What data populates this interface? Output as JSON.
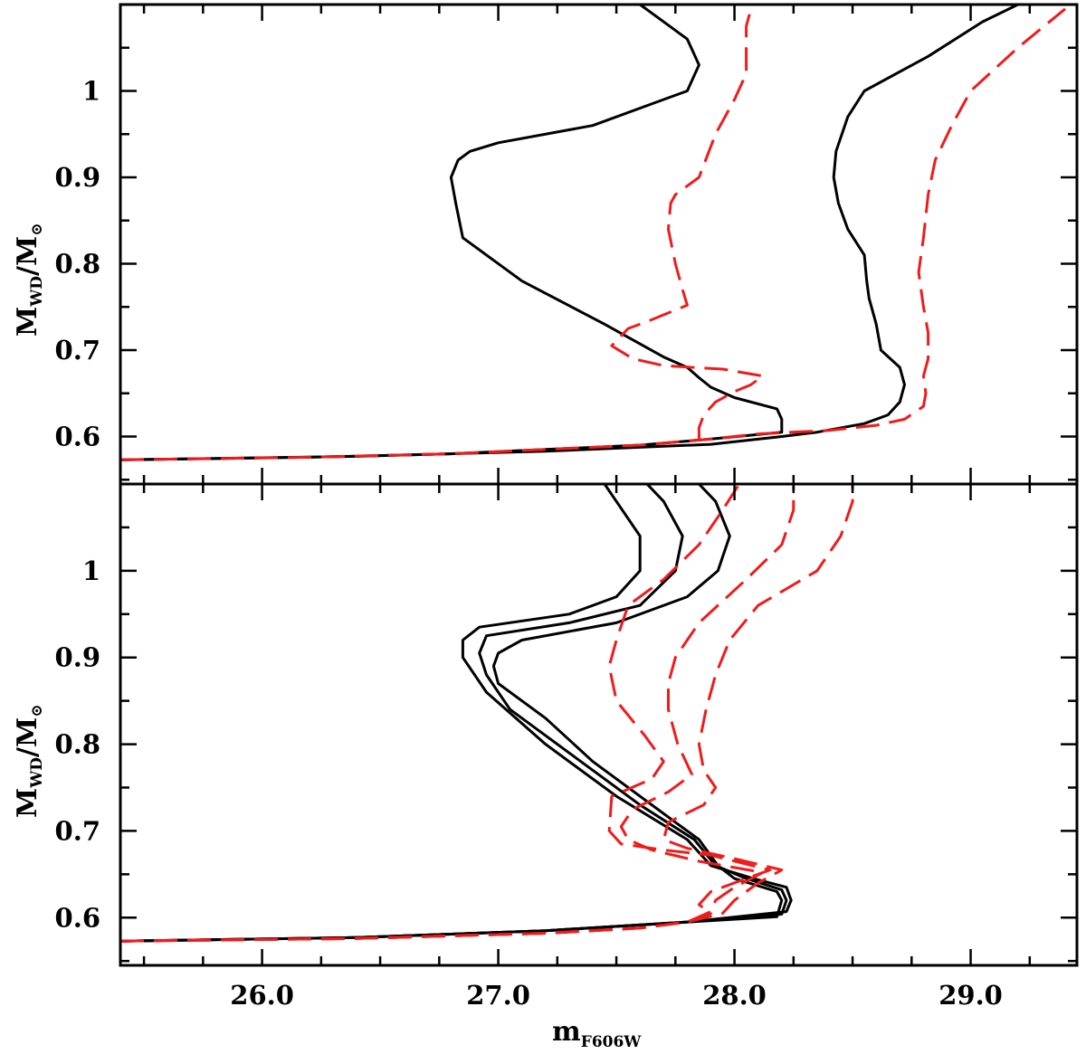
{
  "chart_data": [
    {
      "panel": "top",
      "type": "line",
      "xlabel": {
        "main": "",
        "sub": ""
      },
      "ylabel": {
        "main": "M",
        "sub": "WD",
        "slash": "/M",
        "sym": "⊙"
      },
      "xlim": [
        25.4,
        29.45
      ],
      "ylim": [
        0.545,
        1.1
      ],
      "yticks": [
        0.6,
        0.7,
        0.8,
        0.9,
        1.0
      ],
      "ytick_labels": [
        "0.6",
        "0.7",
        "0.8",
        "0.9",
        "1"
      ],
      "xticks": [
        26.0,
        27.0,
        28.0,
        29.0
      ],
      "xtick_labels": [],
      "colors": {
        "solid": "#000000",
        "dashed": "#ee1c1c"
      },
      "series": [
        {
          "style": "solid",
          "points": [
            [
              25.4,
              0.573
            ],
            [
              26.2,
              0.576
            ],
            [
              26.8,
              0.58
            ],
            [
              27.2,
              0.585
            ],
            [
              27.6,
              0.59
            ],
            [
              27.9,
              0.597
            ],
            [
              28.2,
              0.605
            ],
            [
              28.2,
              0.62
            ],
            [
              28.18,
              0.632
            ],
            [
              28.0,
              0.645
            ],
            [
              27.9,
              0.657
            ],
            [
              27.85,
              0.668
            ],
            [
              27.8,
              0.68
            ],
            [
              27.7,
              0.692
            ],
            [
              27.45,
              0.73
            ],
            [
              27.1,
              0.78
            ],
            [
              26.85,
              0.83
            ],
            [
              26.82,
              0.87
            ],
            [
              26.8,
              0.9
            ],
            [
              26.83,
              0.92
            ],
            [
              26.88,
              0.93
            ],
            [
              27.0,
              0.94
            ],
            [
              27.4,
              0.96
            ],
            [
              27.7,
              0.99
            ],
            [
              27.8,
              1.0
            ],
            [
              27.85,
              1.03
            ],
            [
              27.8,
              1.06
            ],
            [
              27.7,
              1.08
            ],
            [
              27.6,
              1.1
            ]
          ]
        },
        {
          "style": "solid",
          "points": [
            [
              25.4,
              0.573
            ],
            [
              26.4,
              0.577
            ],
            [
              27.2,
              0.583
            ],
            [
              27.9,
              0.591
            ],
            [
              28.2,
              0.6
            ],
            [
              28.35,
              0.605
            ],
            [
              28.55,
              0.615
            ],
            [
              28.65,
              0.625
            ],
            [
              28.7,
              0.64
            ],
            [
              28.72,
              0.66
            ],
            [
              28.7,
              0.68
            ],
            [
              28.62,
              0.7
            ],
            [
              28.6,
              0.73
            ],
            [
              28.57,
              0.76
            ],
            [
              28.56,
              0.78
            ],
            [
              28.55,
              0.81
            ],
            [
              28.48,
              0.84
            ],
            [
              28.44,
              0.87
            ],
            [
              28.42,
              0.9
            ],
            [
              28.43,
              0.93
            ],
            [
              28.48,
              0.97
            ],
            [
              28.55,
              1.0
            ],
            [
              28.82,
              1.04
            ],
            [
              29.05,
              1.08
            ],
            [
              29.2,
              1.1
            ]
          ]
        },
        {
          "style": "dashed",
          "points": [
            [
              25.4,
              0.573
            ],
            [
              26.2,
              0.576
            ],
            [
              26.8,
              0.58
            ],
            [
              27.2,
              0.585
            ],
            [
              27.6,
              0.59
            ],
            [
              27.9,
              0.597
            ],
            [
              28.1,
              0.603
            ],
            [
              28.4,
              0.607
            ],
            [
              28.6,
              0.613
            ],
            [
              28.72,
              0.62
            ],
            [
              28.8,
              0.635
            ],
            [
              28.81,
              0.65
            ],
            [
              28.8,
              0.67
            ],
            [
              28.82,
              0.69
            ],
            [
              28.82,
              0.72
            ],
            [
              28.8,
              0.75
            ],
            [
              28.78,
              0.79
            ],
            [
              28.8,
              0.83
            ],
            [
              28.82,
              0.88
            ],
            [
              28.85,
              0.92
            ],
            [
              28.92,
              0.96
            ],
            [
              29.0,
              1.0
            ],
            [
              29.2,
              1.05
            ],
            [
              29.4,
              1.095
            ]
          ]
        },
        {
          "style": "dashed",
          "points": [
            [
              27.85,
              0.595
            ],
            [
              27.85,
              0.61
            ],
            [
              27.87,
              0.625
            ],
            [
              27.92,
              0.64
            ],
            [
              28.0,
              0.652
            ],
            [
              28.07,
              0.66
            ],
            [
              28.12,
              0.67
            ],
            [
              27.95,
              0.678
            ],
            [
              27.7,
              0.682
            ],
            [
              27.57,
              0.69
            ],
            [
              27.48,
              0.705
            ],
            [
              27.55,
              0.725
            ],
            [
              27.63,
              0.733
            ],
            [
              27.8,
              0.752
            ],
            [
              27.78,
              0.77
            ],
            [
              27.75,
              0.8
            ],
            [
              27.72,
              0.84
            ],
            [
              27.73,
              0.87
            ],
            [
              27.75,
              0.88
            ],
            [
              27.85,
              0.9
            ],
            [
              27.92,
              0.95
            ],
            [
              28.0,
              0.99
            ],
            [
              28.05,
              1.02
            ],
            [
              28.05,
              1.05
            ],
            [
              28.05,
              1.075
            ],
            [
              28.07,
              1.095
            ]
          ]
        }
      ]
    },
    {
      "panel": "bottom",
      "type": "line",
      "xlabel": {
        "main": "m",
        "sub": "F606W"
      },
      "ylabel": {
        "main": "M",
        "sub": "WD",
        "slash": "/M",
        "sym": "⊙"
      },
      "xlim": [
        25.4,
        29.45
      ],
      "ylim": [
        0.545,
        1.1
      ],
      "yticks": [
        0.6,
        0.7,
        0.8,
        0.9,
        1.0
      ],
      "ytick_labels": [
        "0.6",
        "0.7",
        "0.8",
        "0.9",
        "1"
      ],
      "xticks": [
        26.0,
        27.0,
        28.0,
        29.0
      ],
      "xtick_labels": [
        "26.0",
        "27.0",
        "28.0",
        "29.0"
      ],
      "colors": {
        "solid": "#000000",
        "dashed": "#ee1c1c"
      },
      "series": [
        {
          "style": "solid",
          "points": [
            [
              25.4,
              0.573
            ],
            [
              26.4,
              0.577
            ],
            [
              27.2,
              0.585
            ],
            [
              27.8,
              0.595
            ],
            [
              28.22,
              0.607
            ],
            [
              28.24,
              0.62
            ],
            [
              28.22,
              0.635
            ],
            [
              28.08,
              0.645
            ],
            [
              27.9,
              0.66
            ],
            [
              27.8,
              0.69
            ],
            [
              27.5,
              0.74
            ],
            [
              27.2,
              0.8
            ],
            [
              26.95,
              0.86
            ],
            [
              26.85,
              0.9
            ],
            [
              26.85,
              0.92
            ],
            [
              26.92,
              0.935
            ],
            [
              27.3,
              0.95
            ],
            [
              27.5,
              0.97
            ],
            [
              27.6,
              1.0
            ],
            [
              27.6,
              1.04
            ],
            [
              27.5,
              1.08
            ],
            [
              27.45,
              1.1
            ]
          ]
        },
        {
          "style": "solid",
          "points": [
            [
              25.4,
              0.573
            ],
            [
              26.4,
              0.577
            ],
            [
              27.2,
              0.585
            ],
            [
              27.8,
              0.595
            ],
            [
              28.2,
              0.604
            ],
            [
              28.22,
              0.62
            ],
            [
              28.2,
              0.632
            ],
            [
              28.05,
              0.645
            ],
            [
              27.92,
              0.66
            ],
            [
              27.83,
              0.69
            ],
            [
              27.6,
              0.73
            ],
            [
              27.3,
              0.79
            ],
            [
              27.05,
              0.84
            ],
            [
              26.95,
              0.88
            ],
            [
              26.92,
              0.905
            ],
            [
              26.95,
              0.925
            ],
            [
              27.3,
              0.94
            ],
            [
              27.6,
              0.96
            ],
            [
              27.75,
              1.0
            ],
            [
              27.78,
              1.04
            ],
            [
              27.7,
              1.08
            ],
            [
              27.63,
              1.1
            ]
          ]
        },
        {
          "style": "solid",
          "points": [
            [
              25.4,
              0.573
            ],
            [
              26.4,
              0.577
            ],
            [
              27.2,
              0.585
            ],
            [
              27.8,
              0.595
            ],
            [
              28.18,
              0.601
            ],
            [
              28.2,
              0.62
            ],
            [
              28.18,
              0.63
            ],
            [
              28.0,
              0.645
            ],
            [
              27.93,
              0.66
            ],
            [
              27.85,
              0.69
            ],
            [
              27.7,
              0.72
            ],
            [
              27.4,
              0.78
            ],
            [
              27.2,
              0.83
            ],
            [
              27.0,
              0.87
            ],
            [
              26.98,
              0.89
            ],
            [
              27.0,
              0.905
            ],
            [
              27.1,
              0.92
            ],
            [
              27.5,
              0.94
            ],
            [
              27.8,
              0.97
            ],
            [
              27.93,
              1.0
            ],
            [
              27.98,
              1.04
            ],
            [
              27.92,
              1.08
            ],
            [
              27.85,
              1.1
            ]
          ]
        },
        {
          "style": "dashed",
          "points": [
            [
              25.4,
              0.573
            ],
            [
              26.4,
              0.576
            ],
            [
              27.2,
              0.582
            ],
            [
              27.6,
              0.588
            ],
            [
              27.8,
              0.595
            ],
            [
              27.9,
              0.605
            ],
            [
              27.85,
              0.615
            ],
            [
              27.9,
              0.63
            ],
            [
              28.05,
              0.645
            ],
            [
              28.15,
              0.655
            ],
            [
              27.9,
              0.672
            ],
            [
              27.7,
              0.678
            ],
            [
              27.52,
              0.685
            ],
            [
              27.47,
              0.7
            ],
            [
              27.48,
              0.74
            ],
            [
              27.65,
              0.76
            ],
            [
              27.7,
              0.78
            ],
            [
              27.62,
              0.81
            ],
            [
              27.5,
              0.85
            ],
            [
              27.47,
              0.89
            ],
            [
              27.5,
              0.92
            ],
            [
              27.55,
              0.96
            ],
            [
              27.7,
              0.99
            ],
            [
              27.85,
              1.03
            ],
            [
              27.95,
              1.07
            ],
            [
              28.02,
              1.1
            ]
          ]
        },
        {
          "style": "dashed",
          "points": [
            [
              25.4,
              0.573
            ],
            [
              26.4,
              0.576
            ],
            [
              27.2,
              0.582
            ],
            [
              27.6,
              0.588
            ],
            [
              27.8,
              0.595
            ],
            [
              27.9,
              0.607
            ],
            [
              27.92,
              0.62
            ],
            [
              28.0,
              0.635
            ],
            [
              28.12,
              0.652
            ],
            [
              27.85,
              0.665
            ],
            [
              27.65,
              0.678
            ],
            [
              27.55,
              0.69
            ],
            [
              27.52,
              0.705
            ],
            [
              27.57,
              0.725
            ],
            [
              27.72,
              0.745
            ],
            [
              27.82,
              0.765
            ],
            [
              27.76,
              0.8
            ],
            [
              27.72,
              0.84
            ],
            [
              27.72,
              0.87
            ],
            [
              27.75,
              0.9
            ],
            [
              27.85,
              0.94
            ],
            [
              28.05,
              0.99
            ],
            [
              28.2,
              1.03
            ],
            [
              28.25,
              1.07
            ],
            [
              28.25,
              1.1
            ]
          ]
        },
        {
          "style": "dashed",
          "points": [
            [
              25.4,
              0.573
            ],
            [
              26.4,
              0.576
            ],
            [
              27.2,
              0.582
            ],
            [
              27.6,
              0.588
            ],
            [
              27.8,
              0.595
            ],
            [
              27.95,
              0.605
            ],
            [
              28.0,
              0.62
            ],
            [
              28.1,
              0.64
            ],
            [
              28.2,
              0.655
            ],
            [
              28.0,
              0.668
            ],
            [
              27.8,
              0.68
            ],
            [
              27.7,
              0.69
            ],
            [
              27.72,
              0.71
            ],
            [
              27.87,
              0.73
            ],
            [
              27.92,
              0.75
            ],
            [
              27.87,
              0.77
            ],
            [
              27.85,
              0.8
            ],
            [
              27.88,
              0.84
            ],
            [
              27.92,
              0.88
            ],
            [
              27.98,
              0.92
            ],
            [
              28.1,
              0.96
            ],
            [
              28.35,
              1.0
            ],
            [
              28.45,
              1.04
            ],
            [
              28.5,
              1.08
            ],
            [
              28.5,
              1.1
            ]
          ]
        }
      ]
    }
  ]
}
